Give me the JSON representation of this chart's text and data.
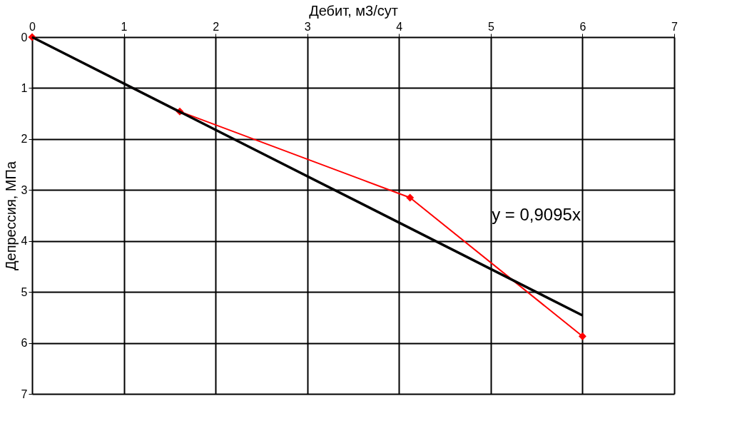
{
  "chart_data": {
    "type": "line",
    "xlabel": "Дебит, м3/сут",
    "ylabel": "Депрессия, МПа",
    "xlim": [
      0,
      7
    ],
    "xticks": [
      0,
      1,
      2,
      3,
      4,
      5,
      6,
      7
    ],
    "ylim": [
      7,
      0
    ],
    "yticks": [
      0,
      1,
      2,
      3,
      4,
      5,
      6,
      7
    ],
    "grid": true,
    "legend": false,
    "marker": "diamond",
    "line_style": "solid",
    "series": [
      {
        "color": "#ff0000",
        "x": [
          0,
          1.61,
          4.12,
          6.0
        ],
        "values": [
          0,
          1.46,
          3.15,
          5.87
        ]
      },
      {
        "color": "#000000",
        "x": [
          0,
          6
        ],
        "values": [
          0,
          5.46
        ],
        "marker": "none"
      }
    ],
    "annotations": [
      "y = 0,9095x"
    ]
  }
}
